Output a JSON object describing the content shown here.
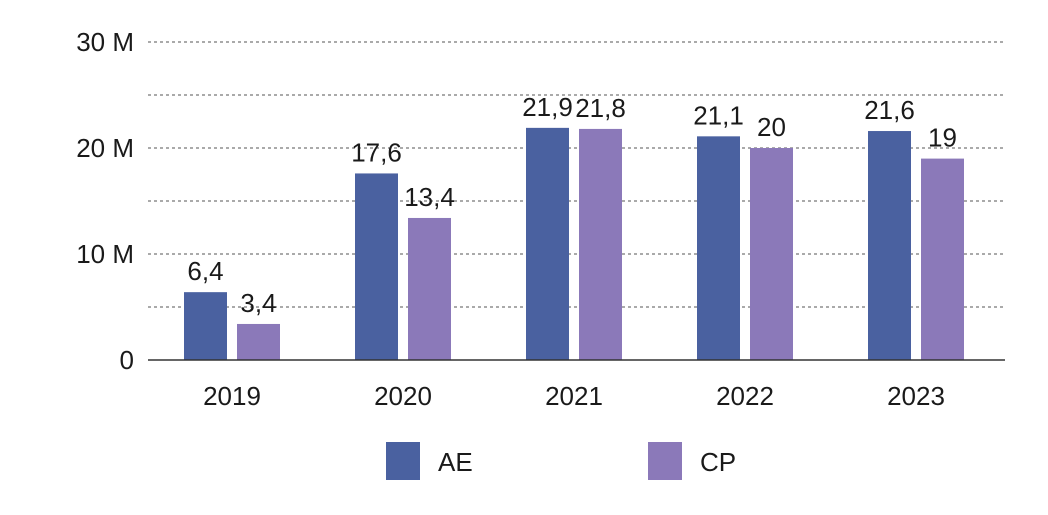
{
  "chart_data": {
    "type": "bar",
    "categories": [
      "2019",
      "2020",
      "2021",
      "2022",
      "2023"
    ],
    "series": [
      {
        "name": "AE",
        "values": [
          6.4,
          17.6,
          21.9,
          21.1,
          21.6
        ],
        "labels": [
          "6,4",
          "17,6",
          "21,9",
          "21,1",
          "21,6"
        ],
        "color": "#4a61a0"
      },
      {
        "name": "CP",
        "values": [
          3.4,
          13.4,
          21.8,
          20,
          19
        ],
        "labels": [
          "3,4",
          "13,4",
          "21,8",
          "20",
          "19"
        ],
        "color": "#8b79b9"
      }
    ],
    "yticks": [
      {
        "value": 0,
        "label": "0"
      },
      {
        "value": 10,
        "label": "10 M"
      },
      {
        "value": 20,
        "label": "20 M"
      },
      {
        "value": 30,
        "label": "30 M"
      }
    ],
    "ylim": [
      0,
      30
    ],
    "title": "",
    "xlabel": "",
    "ylabel": "",
    "grid": true,
    "legend_position": "bottom"
  }
}
